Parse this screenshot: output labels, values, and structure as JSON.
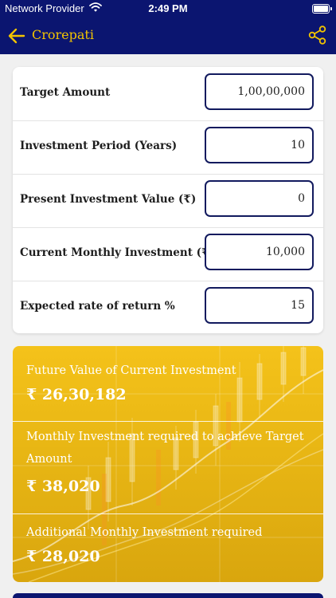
{
  "status_bar": {
    "carrier": "Network Provider",
    "time": "2:49 PM"
  },
  "header": {
    "title": "Crorepati",
    "icons": [
      "back-arrow-icon",
      "share-icon"
    ],
    "accent_color": "#f2c400",
    "background_color": "#0b1570"
  },
  "form": {
    "rows": [
      {
        "label": "Target Amount",
        "value": "1,00,00,000"
      },
      {
        "label": "Investment Period (Years)",
        "value": "10"
      },
      {
        "label": "Present Investment Value (₹)",
        "value": "0"
      },
      {
        "label": "Current Monthly Investment (₹)",
        "value": "10,000"
      },
      {
        "label": "Expected rate of return %",
        "value": "15"
      }
    ]
  },
  "results": {
    "rows": [
      {
        "label": "Future Value of Current Investment",
        "value": "₹ 26,30,182"
      },
      {
        "label": "Monthly Investment required to achieve Target Amount",
        "value": "₹ 38,020"
      },
      {
        "label": "Additional Monthly Investment required",
        "value": "₹ 28,020"
      }
    ],
    "card_color": "#f0be18"
  }
}
